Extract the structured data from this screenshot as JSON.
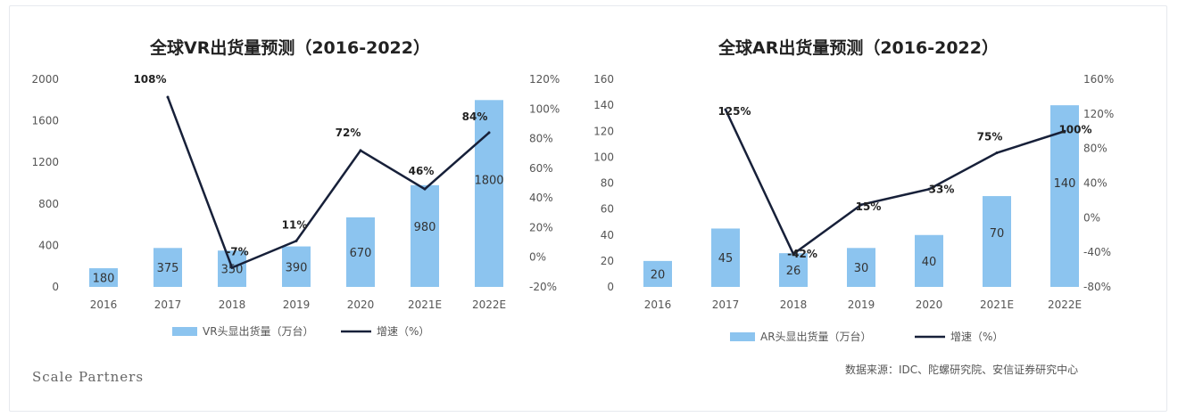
{
  "colors": {
    "bar": "#8cc4ef",
    "line": "#172039"
  },
  "watermark": "Scale Partners",
  "source": "数据来源：IDC、陀螺研究院、安信证券研究中心",
  "chart_data": [
    {
      "type": "bar",
      "title": "全球VR出货量预测（2016-2022）",
      "categories": [
        "2016",
        "2017",
        "2018",
        "2019",
        "2020",
        "2021E",
        "2022E"
      ],
      "series": [
        {
          "name": "VR头显出货量（万台）",
          "type": "bar",
          "axis": "left",
          "values": [
            180,
            375,
            350,
            390,
            670,
            980,
            1800
          ],
          "labels": [
            "180",
            "375",
            "350",
            "390",
            "670",
            "980",
            "1800"
          ]
        },
        {
          "name": "增速（%）",
          "type": "line",
          "axis": "right",
          "values": [
            null,
            108,
            -7,
            11,
            72,
            46,
            84
          ],
          "labels": [
            "",
            "108%",
            "-7%",
            "11%",
            "72%",
            "46%",
            "84%"
          ]
        }
      ],
      "left_ticks": [
        "0",
        "400",
        "800",
        "1200",
        "1600",
        "2000"
      ],
      "right_ticks": [
        "-20%",
        "0%",
        "20%",
        "40%",
        "60%",
        "80%",
        "100%",
        "120%"
      ],
      "ylim_left": [
        0,
        2000
      ],
      "ylim_right": [
        -20,
        120
      ],
      "legend_position": "bottom",
      "grid": false
    },
    {
      "type": "bar",
      "title": "全球AR出货量预测（2016-2022）",
      "categories": [
        "2016",
        "2017",
        "2018",
        "2019",
        "2020",
        "2021E",
        "2022E"
      ],
      "series": [
        {
          "name": "AR头显出货量（万台）",
          "type": "bar",
          "axis": "left",
          "values": [
            20,
            45,
            26,
            30,
            40,
            70,
            140
          ],
          "labels": [
            "20",
            "45",
            "26",
            "30",
            "40",
            "70",
            "140"
          ]
        },
        {
          "name": "增速（%）",
          "type": "line",
          "axis": "right",
          "values": [
            null,
            125,
            -42,
            15,
            33,
            75,
            100
          ],
          "labels": [
            "",
            "125%",
            "-42%",
            "15%",
            "33%",
            "75%",
            "100%"
          ]
        }
      ],
      "left_ticks": [
        "0",
        "20",
        "40",
        "60",
        "80",
        "100",
        "120",
        "140",
        "160"
      ],
      "right_ticks": [
        "-80%",
        "-40%",
        "0%",
        "40%",
        "80%",
        "120%",
        "160%"
      ],
      "ylim_left": [
        0,
        160
      ],
      "ylim_right": [
        -80,
        160
      ],
      "legend_position": "bottom",
      "grid": false
    }
  ]
}
